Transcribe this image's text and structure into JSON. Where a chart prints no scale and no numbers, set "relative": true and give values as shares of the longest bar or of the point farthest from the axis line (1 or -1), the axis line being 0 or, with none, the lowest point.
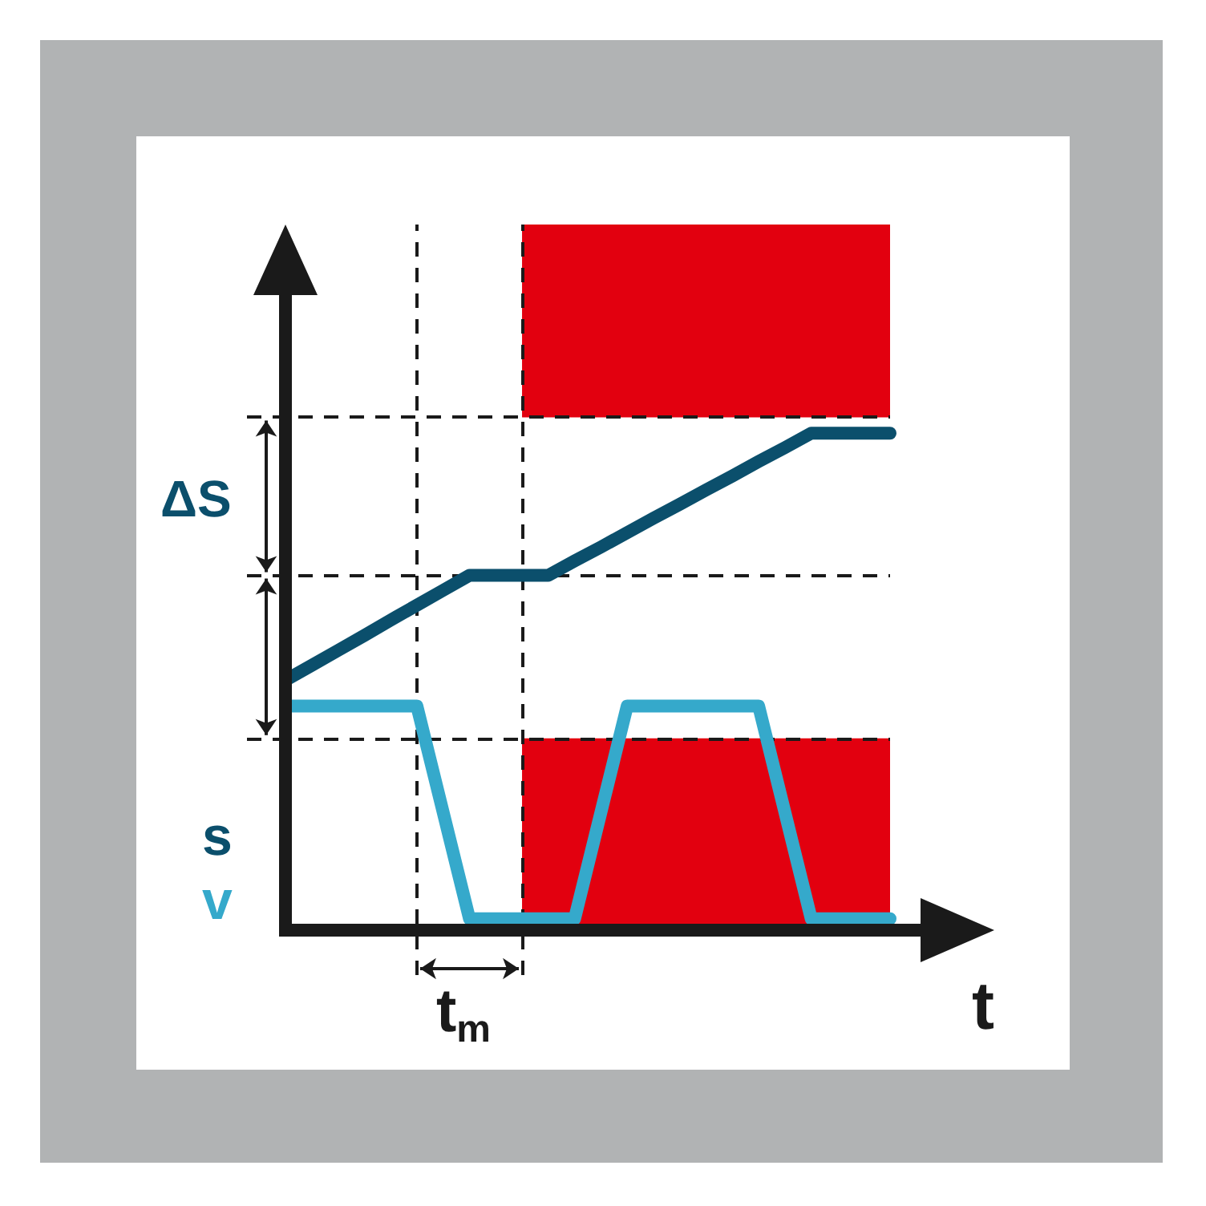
{
  "chart_data": {
    "type": "line",
    "relative": true,
    "xlabel": "t",
    "line_style": "solid",
    "categories": [
      null,
      null,
      null,
      null,
      null,
      null,
      null,
      null,
      null,
      null,
      null,
      null,
      null,
      null,
      null,
      null,
      null,
      null,
      null,
      null,
      null,
      null,
      null,
      null
    ],
    "series": [
      {
        "name": "s",
        "color": "#0b4f6c",
        "values": [
          0.503,
          0.533,
          0.563,
          0.593,
          0.624,
          0.654,
          0.684,
          0.714,
          0.714,
          0.714,
          0.714,
          0.743,
          0.771,
          0.8,
          0.829,
          0.857,
          0.886,
          0.914,
          0.943,
          0.971,
          1,
          1,
          1,
          1
        ]
      },
      {
        "name": "v",
        "color": "#35a9cb",
        "values": [
          0.451,
          0.451,
          0.451,
          0.451,
          0.451,
          0.451,
          0.237,
          0.023,
          0.023,
          0.023,
          0.023,
          0.023,
          0.237,
          0.451,
          0.451,
          0.451,
          0.451,
          0.451,
          0.451,
          0.237,
          0.023,
          0.023,
          0.023,
          0.023
        ]
      }
    ],
    "ref_lines": [
      {
        "axis": "y",
        "value": 1.032,
        "line_style": "dashed",
        "color": "#1a1a1a"
      },
      {
        "axis": "y",
        "value": 0.714,
        "line_style": "dashed",
        "color": "#1a1a1a"
      },
      {
        "axis": "y",
        "value": 0.386,
        "line_style": "dashed",
        "color": "#1a1a1a"
      }
    ],
    "bands": [
      {
        "axis": "y",
        "from": 1.032,
        "to": 1.42,
        "color": "#e2000f"
      },
      {
        "axis": "y",
        "from": 0,
        "to": 0.386,
        "color": "#e2000f"
      }
    ],
    "annotations": [
      "ΔS",
      "t$_{m}$"
    ]
  }
}
